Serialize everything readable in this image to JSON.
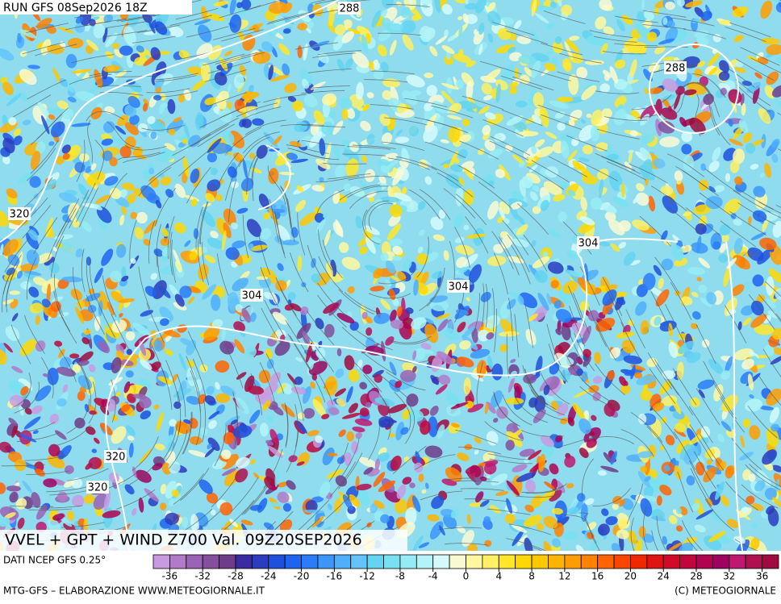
{
  "header": {
    "run": "RUN GFS 08Sep2026 18Z"
  },
  "map": {
    "contour_labels": [
      "288",
      "288",
      "320",
      "304",
      "304",
      "304",
      "320",
      "320"
    ]
  },
  "title": "VVEL + GPT + WIND Z700 Val. 09Z20SEP2026",
  "colorbar": {
    "source": "DATI NCEP GFS 0.25°",
    "range": [
      -38,
      38
    ],
    "ticks": [
      -36,
      -32,
      -28,
      -24,
      -20,
      -16,
      -12,
      -8,
      -4,
      0,
      4,
      8,
      12,
      16,
      20,
      24,
      28,
      32,
      36
    ],
    "colors": [
      "#c89be0",
      "#b07cc8",
      "#9a64b4",
      "#84509e",
      "#6e3c8a",
      "#3a2ca0",
      "#2a3cc0",
      "#1e50dc",
      "#1e64f0",
      "#2a7cf8",
      "#3c96fa",
      "#50aefa",
      "#64c4fa",
      "#64d4f0",
      "#78e0f0",
      "#96ecf4",
      "#b4f4f8",
      "#d6fafc",
      "#fafad2",
      "#fff8a0",
      "#fff064",
      "#ffe628",
      "#ffd800",
      "#ffc800",
      "#ffb400",
      "#ff9c00",
      "#ff8200",
      "#ff6400",
      "#f84600",
      "#f02800",
      "#e01414",
      "#d00a28",
      "#c0063c",
      "#b00450",
      "#a00260",
      "#c01870",
      "#b01050",
      "#a00a40"
    ]
  },
  "footer": {
    "left": "MTG-GFS – ELABORAZIONE WWW.METEOGIORNALE.IT",
    "right": "(C) METEOGIORNALE"
  }
}
